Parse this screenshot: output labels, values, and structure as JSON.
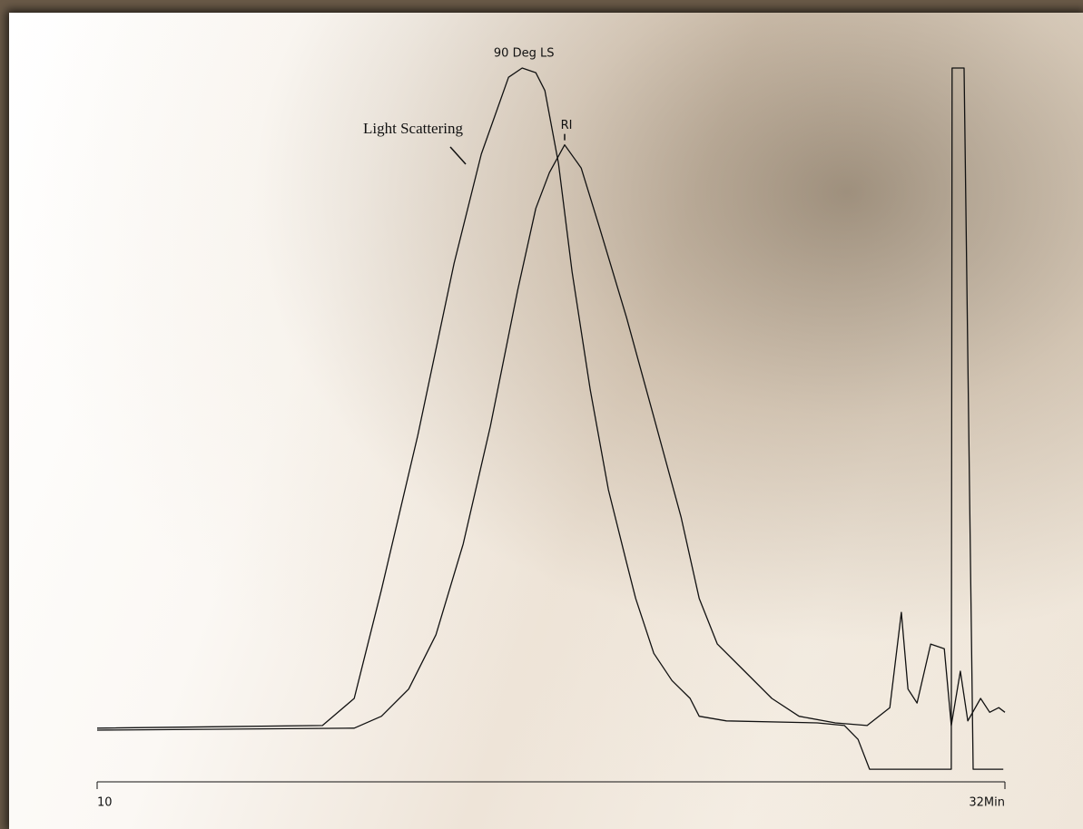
{
  "chart_data": {
    "type": "line",
    "xlim": [
      10,
      32
    ],
    "ylim": [
      -10,
      100
    ],
    "xticks": [
      10,
      {
        "value": 32,
        "label": "32Min"
      }
    ],
    "annotations": [
      "Light Scattering"
    ],
    "series": [
      {
        "name": "90 Deg LS",
        "color": "#111111",
        "x": [
          10.0,
          15.46,
          16.23,
          16.89,
          17.77,
          18.65,
          19.31,
          19.97,
          20.3,
          20.63,
          20.85,
          21.18,
          21.51,
          21.95,
          22.39,
          22.83,
          23.05,
          23.49,
          23.93,
          24.37,
          24.59,
          25.25,
          27.45,
          28.11,
          28.44,
          28.72,
          30.7,
          30.72,
          31.01,
          31.23,
          31.96
        ],
        "values": [
          0.3,
          0.7,
          4.8,
          21.2,
          44.5,
          70.5,
          87.0,
          98.6,
          100.0,
          99.3,
          96.6,
          85.6,
          69.2,
          51.4,
          36.3,
          25.3,
          19.9,
          11.6,
          7.5,
          4.8,
          2.1,
          1.4,
          1.1,
          0.7,
          -1.4,
          -5.9,
          -5.9,
          100.0,
          100.0,
          -5.9,
          -5.9
        ]
      },
      {
        "name": "RI",
        "color": "#111111",
        "x": [
          10.0,
          16.23,
          16.89,
          17.55,
          18.21,
          18.87,
          19.53,
          20.19,
          20.63,
          20.96,
          21.33,
          21.73,
          22.17,
          22.83,
          23.49,
          24.15,
          24.59,
          25.03,
          25.69,
          26.35,
          27.01,
          27.89,
          28.66,
          29.21,
          29.49,
          29.65,
          29.87,
          30.2,
          30.53,
          30.7,
          30.92,
          31.1,
          31.41,
          31.63,
          31.85,
          32.0
        ],
        "values": [
          0,
          0.3,
          2.1,
          6.2,
          14.4,
          28.1,
          45.9,
          66.4,
          78.8,
          84.2,
          88.4,
          84.9,
          76.0,
          62.3,
          47.3,
          32.2,
          19.9,
          13.0,
          8.9,
          4.8,
          2.1,
          1.1,
          0.7,
          3.4,
          17.8,
          6.2,
          4.1,
          13.0,
          12.3,
          0.7,
          8.9,
          1.4,
          4.8,
          2.7,
          3.4,
          2.7
        ]
      }
    ]
  }
}
